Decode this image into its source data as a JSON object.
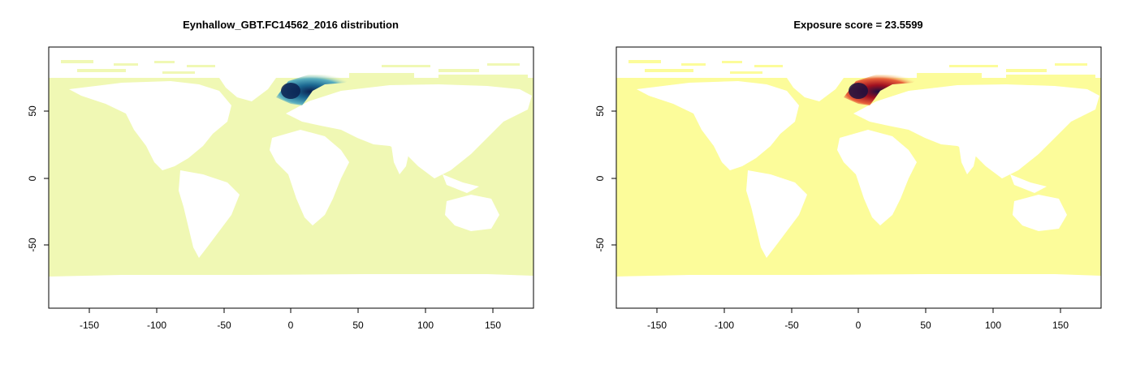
{
  "chart_data": [
    {
      "type": "heatmap",
      "title": "Eynhallow_GBT.FC14562_2016 distribution",
      "xlabel": "",
      "ylabel": "",
      "xlim": [
        -180,
        180
      ],
      "ylim": [
        -95,
        95
      ],
      "x_ticks": [
        -150,
        -100,
        -50,
        0,
        50,
        100,
        150
      ],
      "y_ticks": [
        -50,
        0,
        50
      ],
      "x_tick_labels": [
        "-150",
        "-100",
        "-50",
        "0",
        "50",
        "100",
        "150"
      ],
      "y_tick_labels": [
        "-50",
        "0",
        "50"
      ],
      "grid": false,
      "legend": "none",
      "colors": {
        "ocean": "#f0f8b4",
        "hotspot_low": "#5aafc0",
        "hotspot_mid": "#1a6690",
        "hotspot_high": "#0b2050",
        "land": "#ffffff"
      },
      "hotspot": {
        "center": [
          3,
          63
        ],
        "extent_lon": [
          -10,
          45
        ],
        "extent_lat": [
          55,
          77
        ]
      }
    },
    {
      "type": "heatmap",
      "title": "Exposure score = 23.5599",
      "xlabel": "",
      "ylabel": "",
      "xlim": [
        -180,
        180
      ],
      "ylim": [
        -95,
        95
      ],
      "x_ticks": [
        -150,
        -100,
        -50,
        0,
        50,
        100,
        150
      ],
      "y_ticks": [
        -50,
        0,
        50
      ],
      "x_tick_labels": [
        "-150",
        "-100",
        "-50",
        "0",
        "50",
        "100",
        "150"
      ],
      "y_tick_labels": [
        "-50",
        "0",
        "50"
      ],
      "grid": false,
      "legend": "none",
      "colors": {
        "ocean": "#fcfc9a",
        "hotspot_low": "#e8603a",
        "hotspot_mid": "#a01020",
        "hotspot_high": "#1a1040",
        "land": "#ffffff"
      },
      "hotspot": {
        "center": [
          3,
          63
        ],
        "extent_lon": [
          -10,
          45
        ],
        "extent_lat": [
          55,
          77
        ]
      }
    }
  ]
}
